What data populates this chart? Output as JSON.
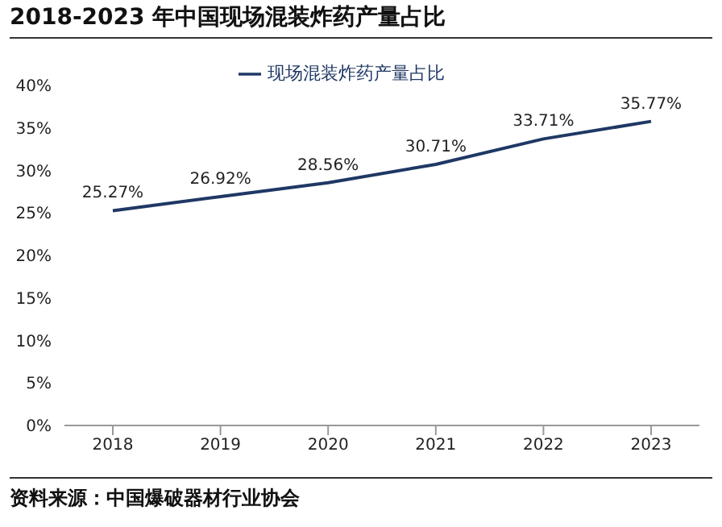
{
  "chart_data": {
    "type": "line",
    "title": "2018-2023 年中国现场混装炸药产量占比",
    "categories": [
      "2018",
      "2019",
      "2020",
      "2021",
      "2022",
      "2023"
    ],
    "series": [
      {
        "name": "现场混装炸药产量占比",
        "color": "#1f3864",
        "values": [
          25.27,
          26.92,
          28.56,
          30.71,
          33.71,
          35.77
        ],
        "value_labels": [
          "25.27%",
          "26.92%",
          "28.56%",
          "30.71%",
          "33.71%",
          "35.77%"
        ]
      }
    ],
    "ylim": [
      0,
      40
    ],
    "yticks": [
      {
        "value": 0,
        "label": "0%"
      },
      {
        "value": 5,
        "label": "5%"
      },
      {
        "value": 10,
        "label": "10%"
      },
      {
        "value": 15,
        "label": "15%"
      },
      {
        "value": 20,
        "label": "20%"
      },
      {
        "value": 25,
        "label": "25%"
      },
      {
        "value": 30,
        "label": "30%"
      },
      {
        "value": 35,
        "label": "35%"
      },
      {
        "value": 40,
        "label": "40%"
      }
    ],
    "legend": "top",
    "grid": false,
    "marker": "none",
    "annotations": [
      "资料来源：中国爆破器材行业协会"
    ]
  }
}
